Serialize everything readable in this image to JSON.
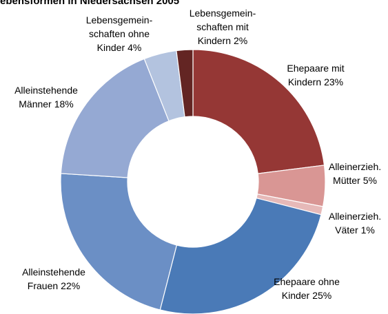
{
  "chart_data": {
    "type": "donut",
    "title": "ebensformen in Niedersachsen 2005",
    "categories": [
      "Ehepaare mit\nKindern",
      "Alleinerzieh.\nMütter",
      "Alleinerzieh.\nVäter",
      "Ehepaare ohne\nKinder",
      "Alleinstehende\nFrauen",
      "Alleinstehende\nMänner",
      "Lebensgemein-\nschaften ohne\nKinder",
      "Lebensgemein-\nschaften mit\nKindern"
    ],
    "values": [
      23,
      5,
      1,
      25,
      22,
      18,
      4,
      2
    ],
    "value_labels": [
      "23%",
      "5%",
      "1%",
      "25%",
      "22%",
      "18%",
      "4%",
      "2%"
    ],
    "colors": [
      "#953735",
      "#d99694",
      "#e6b9b8",
      "#4a7ab7",
      "#6b8fc5",
      "#95a9d3",
      "#b3c3df",
      "#632523"
    ]
  }
}
